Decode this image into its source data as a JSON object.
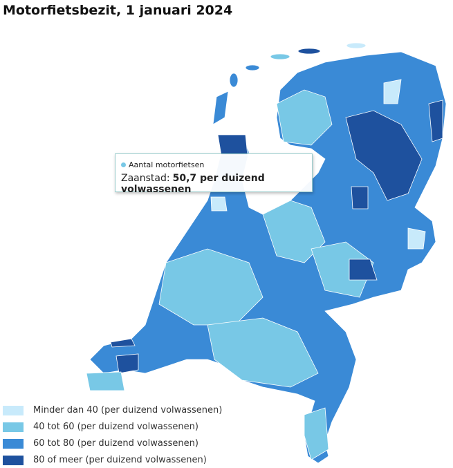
{
  "header": {
    "title": "Motorfietsbezit, 1 januari 2024"
  },
  "tooltip": {
    "series": "Aantal motorfietsen",
    "region": "Zaanstad:",
    "value": "50,7 per duizend volwassenen"
  },
  "legend": [
    {
      "label": "Minder dan 40 (per duizend volwassenen)",
      "color": "#c8eafb"
    },
    {
      "label": "40 tot 60 (per duizend volwassenen)",
      "color": "#78c8e6"
    },
    {
      "label": "60 tot 80 (per duizend volwassenen)",
      "color": "#3a8ad6"
    },
    {
      "label": "80 of meer (per duizend volwassenen)",
      "color": "#1e519e"
    }
  ]
}
